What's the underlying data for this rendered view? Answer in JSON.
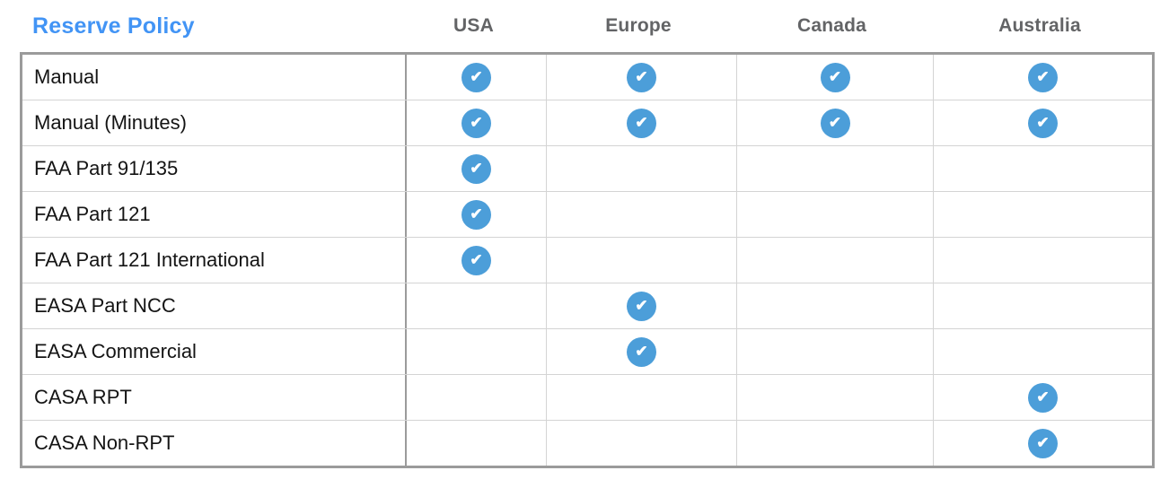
{
  "title": "Reserve Policy",
  "columns": [
    "USA",
    "Europe",
    "Canada",
    "Australia"
  ],
  "rows": [
    {
      "label": "Manual",
      "checks": [
        true,
        true,
        true,
        true
      ]
    },
    {
      "label": "Manual (Minutes)",
      "checks": [
        true,
        true,
        true,
        true
      ]
    },
    {
      "label": "FAA Part 91/135",
      "checks": [
        true,
        false,
        false,
        false
      ]
    },
    {
      "label": "FAA Part 121",
      "checks": [
        true,
        false,
        false,
        false
      ]
    },
    {
      "label": "FAA Part 121 International",
      "checks": [
        true,
        false,
        false,
        false
      ]
    },
    {
      "label": "EASA Part NCC",
      "checks": [
        false,
        true,
        false,
        false
      ]
    },
    {
      "label": "EASA Commercial",
      "checks": [
        false,
        true,
        false,
        false
      ]
    },
    {
      "label": "CASA RPT",
      "checks": [
        false,
        false,
        false,
        true
      ]
    },
    {
      "label": "CASA Non-RPT",
      "checks": [
        false,
        false,
        false,
        true
      ]
    }
  ],
  "icons": {
    "check_glyph": "✔",
    "check_icon_name": "check-icon"
  },
  "colors": {
    "title_blue": "#4294F5",
    "header_gray": "#636466",
    "check_circle_blue": "#4C9ED9",
    "outer_border_gray": "#9B9B9B",
    "inner_line_gray": "#D4D4D4",
    "label_text": "#141414"
  }
}
